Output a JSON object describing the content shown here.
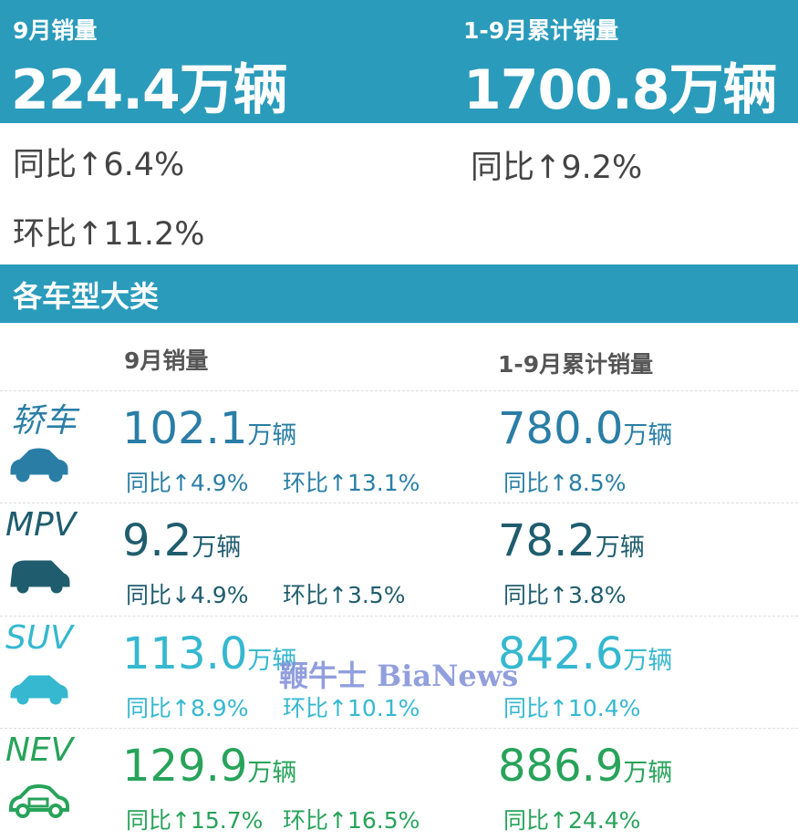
{
  "summary": {
    "month_label": "9月销量",
    "month_value": "224.4万辆",
    "month_yoy": "同比↑6.4%",
    "month_mom": "环比↑11.2%",
    "ytd_label": "1-9月累计销量",
    "ytd_value": "1700.8万辆",
    "ytd_yoy": "同比↑9.2%"
  },
  "section_title": "各车型大类",
  "columns": {
    "month": "9月销量",
    "ytd": "1-9月累计销量"
  },
  "categories": [
    {
      "name": "轿车",
      "icon": "sedan-icon",
      "color": "#2a7ea6",
      "month_value": "102.1",
      "month_unit": "万辆",
      "month_yoy": "同比↑4.9%",
      "month_mom": "环比↑13.1%",
      "ytd_value": "780.0",
      "ytd_unit": "万辆",
      "ytd_yoy": "同比↑8.5%"
    },
    {
      "name": "MPV",
      "icon": "mpv-icon",
      "color": "#1f5d6e",
      "month_value": "9.2",
      "month_unit": "万辆",
      "month_yoy": "同比↓4.9%",
      "month_mom": "环比↑3.5%",
      "ytd_value": "78.2",
      "ytd_unit": "万辆",
      "ytd_yoy": "同比↑3.8%"
    },
    {
      "name": "SUV",
      "icon": "suv-icon",
      "color": "#35b8d0",
      "month_value": "113.0",
      "month_unit": "万辆",
      "month_yoy": "同比↑8.9%",
      "month_mom": "环比↑10.1%",
      "ytd_value": "842.6",
      "ytd_unit": "万辆",
      "ytd_yoy": "同比↑10.4%"
    },
    {
      "name": "NEV",
      "icon": "nev-icon",
      "color": "#27a35a",
      "month_value": "129.9",
      "month_unit": "万辆",
      "month_yoy": "同比↑15.7%",
      "month_mom": "环比↑16.5%",
      "ytd_value": "886.9",
      "ytd_unit": "万辆",
      "ytd_yoy": "同比↑24.4%"
    }
  ],
  "watermark": "鞭牛士 BiaNews",
  "colors": {
    "header": "#2a9bbb"
  }
}
